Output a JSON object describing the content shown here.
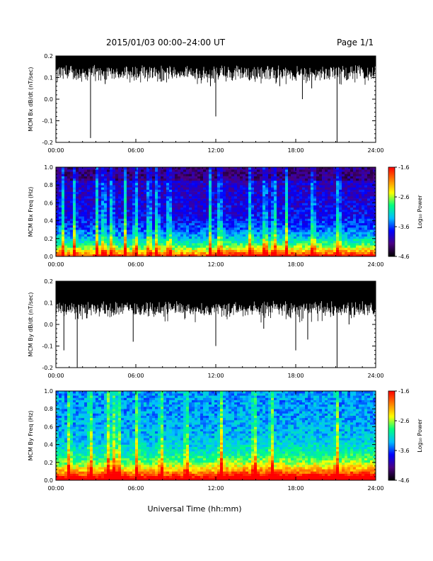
{
  "header": {
    "title": "2015/01/03  00:00–24:00 UT",
    "page": "Page 1/1"
  },
  "xaxis": {
    "label": "Universal Time (hh:mm)",
    "ticks": [
      "00:00",
      "06:00",
      "12:00",
      "18:00",
      "24:00"
    ],
    "range_hours": [
      0,
      24
    ]
  },
  "colorscale": {
    "title": "Log₁₀ Power",
    "range": [
      -4.6,
      -1.6
    ],
    "ticks": [
      "-1.6",
      "-2.6",
      "-3.6",
      "-4.6"
    ],
    "colors": [
      "#000000",
      "#4b0082",
      "#0000ff",
      "#00bfff",
      "#00ff80",
      "#ffff00",
      "#ff8000",
      "#ff0000"
    ]
  },
  "chart_data": [
    {
      "type": "line",
      "ylabel": "MCM Bx dB/dt (nT/sec)",
      "ylim": [
        -0.2,
        0.2
      ],
      "yticks": [
        "0.2",
        "0.1",
        "0.0",
        "-0.1",
        "-0.2"
      ],
      "baseline_low": 0.13,
      "spikes": [
        [
          2.6,
          -0.18
        ],
        [
          3.7,
          0.07
        ],
        [
          12.0,
          -0.08
        ],
        [
          11.6,
          0.06
        ],
        [
          16.8,
          0.06
        ],
        [
          18.5,
          0.0
        ],
        [
          19.2,
          0.05
        ],
        [
          21.1,
          -0.2
        ],
        [
          21.3,
          0.07
        ]
      ]
    },
    {
      "type": "heatmap",
      "ylabel": "MCM Bx Freq (Hz)",
      "ylim": [
        0.0,
        1.0
      ],
      "yticks": [
        "1.0",
        "0.8",
        "0.6",
        "0.4",
        "0.2",
        "0.0"
      ],
      "bright_columns": [
        0.5,
        1.4,
        3.1,
        3.6,
        4.2,
        5.2,
        6.0,
        7.0,
        7.6,
        8.5,
        11.6,
        12.3,
        14.6,
        15.7,
        16.4,
        17.3,
        19.3,
        21.2
      ]
    },
    {
      "type": "line",
      "ylabel": "MCM By dB/dt (nT/sec)",
      "ylim": [
        -0.2,
        0.2
      ],
      "yticks": [
        "0.2",
        "0.1",
        "0.0",
        "-0.1",
        "-0.2"
      ],
      "baseline_low": 0.08,
      "spikes": [
        [
          0.6,
          -0.12
        ],
        [
          1.6,
          -0.2
        ],
        [
          5.8,
          -0.08
        ],
        [
          12.0,
          -0.1
        ],
        [
          15.6,
          -0.02
        ],
        [
          18.0,
          -0.12
        ],
        [
          18.9,
          -0.07
        ],
        [
          21.1,
          -0.2
        ],
        [
          22.0,
          0.0
        ]
      ]
    },
    {
      "type": "heatmap",
      "ylabel": "MCM By Freq (Hz)",
      "ylim": [
        0.0,
        1.0
      ],
      "yticks": [
        "1.0",
        "0.8",
        "0.6",
        "0.4",
        "0.2",
        "0.0"
      ],
      "bright_columns": [
        1.0,
        2.6,
        3.9,
        4.3,
        4.7,
        6.1,
        7.9,
        9.8,
        12.4,
        14.9,
        16.2,
        21.1
      ]
    }
  ]
}
